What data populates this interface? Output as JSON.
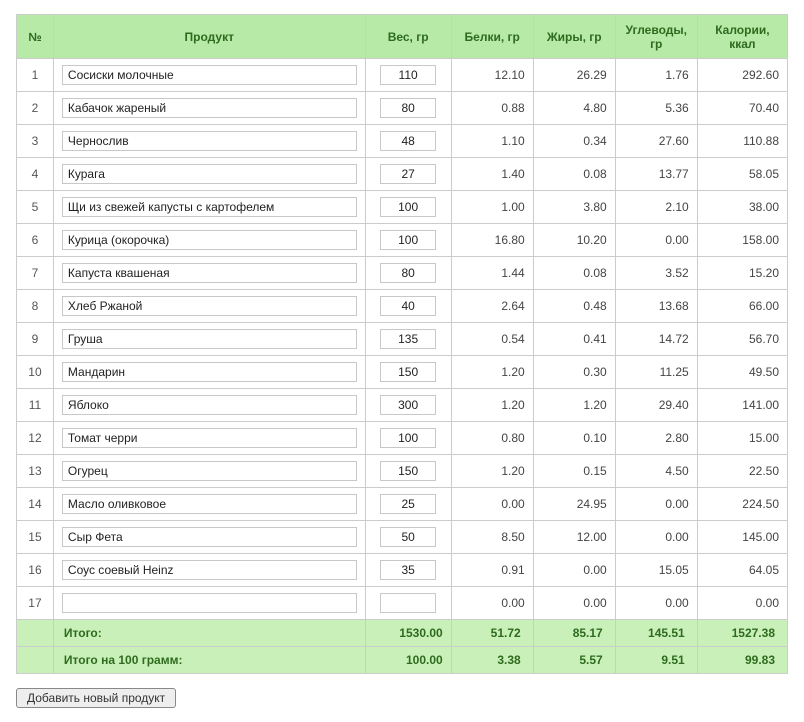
{
  "headers": {
    "num": "№",
    "product": "Продукт",
    "weight": "Вес, гр",
    "protein": "Белки, гр",
    "fat": "Жиры, гр",
    "carbs": "Углеводы, гр",
    "calories": "Калории, ккал"
  },
  "rows": [
    {
      "n": "1",
      "product": "Сосиски молочные",
      "weight": "110",
      "protein": "12.10",
      "fat": "26.29",
      "carbs": "1.76",
      "cal": "292.60"
    },
    {
      "n": "2",
      "product": "Кабачок жареный",
      "weight": "80",
      "protein": "0.88",
      "fat": "4.80",
      "carbs": "5.36",
      "cal": "70.40"
    },
    {
      "n": "3",
      "product": "Чернослив",
      "weight": "48",
      "protein": "1.10",
      "fat": "0.34",
      "carbs": "27.60",
      "cal": "110.88"
    },
    {
      "n": "4",
      "product": "Курага",
      "weight": "27",
      "protein": "1.40",
      "fat": "0.08",
      "carbs": "13.77",
      "cal": "58.05"
    },
    {
      "n": "5",
      "product": "Щи из свежей капусты с картофелем",
      "weight": "100",
      "protein": "1.00",
      "fat": "3.80",
      "carbs": "2.10",
      "cal": "38.00"
    },
    {
      "n": "6",
      "product": "Курица (окорочка)",
      "weight": "100",
      "protein": "16.80",
      "fat": "10.20",
      "carbs": "0.00",
      "cal": "158.00"
    },
    {
      "n": "7",
      "product": "Капуста квашеная",
      "weight": "80",
      "protein": "1.44",
      "fat": "0.08",
      "carbs": "3.52",
      "cal": "15.20"
    },
    {
      "n": "8",
      "product": "Хлеб Ржаной",
      "weight": "40",
      "protein": "2.64",
      "fat": "0.48",
      "carbs": "13.68",
      "cal": "66.00"
    },
    {
      "n": "9",
      "product": "Груша",
      "weight": "135",
      "protein": "0.54",
      "fat": "0.41",
      "carbs": "14.72",
      "cal": "56.70"
    },
    {
      "n": "10",
      "product": "Мандарин",
      "weight": "150",
      "protein": "1.20",
      "fat": "0.30",
      "carbs": "11.25",
      "cal": "49.50"
    },
    {
      "n": "11",
      "product": "Яблоко",
      "weight": "300",
      "protein": "1.20",
      "fat": "1.20",
      "carbs": "29.40",
      "cal": "141.00"
    },
    {
      "n": "12",
      "product": "Томат черри",
      "weight": "100",
      "protein": "0.80",
      "fat": "0.10",
      "carbs": "2.80",
      "cal": "15.00"
    },
    {
      "n": "13",
      "product": "Огурец",
      "weight": "150",
      "protein": "1.20",
      "fat": "0.15",
      "carbs": "4.50",
      "cal": "22.50"
    },
    {
      "n": "14",
      "product": "Масло оливковое",
      "weight": "25",
      "protein": "0.00",
      "fat": "24.95",
      "carbs": "0.00",
      "cal": "224.50"
    },
    {
      "n": "15",
      "product": "Сыр Фета",
      "weight": "50",
      "protein": "8.50",
      "fat": "12.00",
      "carbs": "0.00",
      "cal": "145.00"
    },
    {
      "n": "16",
      "product": "Соус соевый Heinz",
      "weight": "35",
      "protein": "0.91",
      "fat": "0.00",
      "carbs": "15.05",
      "cal": "64.05"
    },
    {
      "n": "17",
      "product": "",
      "weight": "",
      "protein": "0.00",
      "fat": "0.00",
      "carbs": "0.00",
      "cal": "0.00"
    }
  ],
  "totals": {
    "label": "Итого:",
    "weight": "1530.00",
    "protein": "51.72",
    "fat": "85.17",
    "carbs": "145.51",
    "cal": "1527.38"
  },
  "per100": {
    "label": "Итого на 100 грамм:",
    "weight": "100.00",
    "protein": "3.38",
    "fat": "5.57",
    "carbs": "9.51",
    "cal": "99.83"
  },
  "buttons": {
    "add_product": "Добавить новый продукт"
  },
  "style": {
    "header_bg": "#b6eaa6",
    "header_fg": "#2e6b1f",
    "total_bg": "#c9f0b8",
    "border": "#cccccc"
  }
}
